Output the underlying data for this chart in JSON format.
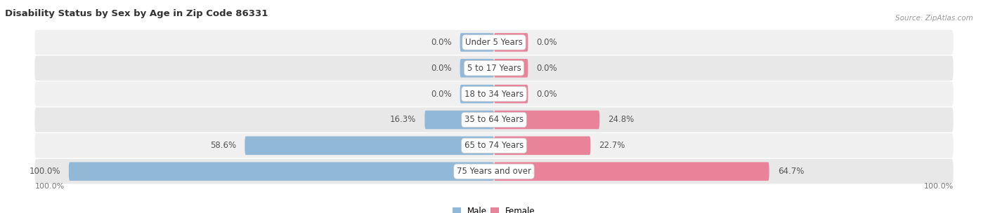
{
  "title": "Disability Status by Sex by Age in Zip Code 86331",
  "source": "Source: ZipAtlas.com",
  "categories": [
    "Under 5 Years",
    "5 to 17 Years",
    "18 to 34 Years",
    "35 to 64 Years",
    "65 to 74 Years",
    "75 Years and over"
  ],
  "male_values": [
    0.0,
    0.0,
    0.0,
    16.3,
    58.6,
    100.0
  ],
  "female_values": [
    0.0,
    0.0,
    0.0,
    24.8,
    22.7,
    64.7
  ],
  "male_color": "#92b8d8",
  "female_color": "#e8839a",
  "row_bg_colors": [
    "#f0f0f0",
    "#e8e8e8",
    "#f0f0f0",
    "#e8e8e8",
    "#f0f0f0",
    "#e8e8e8"
  ],
  "max_val": 100.0,
  "stub_val": 8.0,
  "label_fontsize": 8.5,
  "title_fontsize": 9.5,
  "source_fontsize": 7.5,
  "legend_fontsize": 8.5,
  "axis_label_fontsize": 8.0
}
